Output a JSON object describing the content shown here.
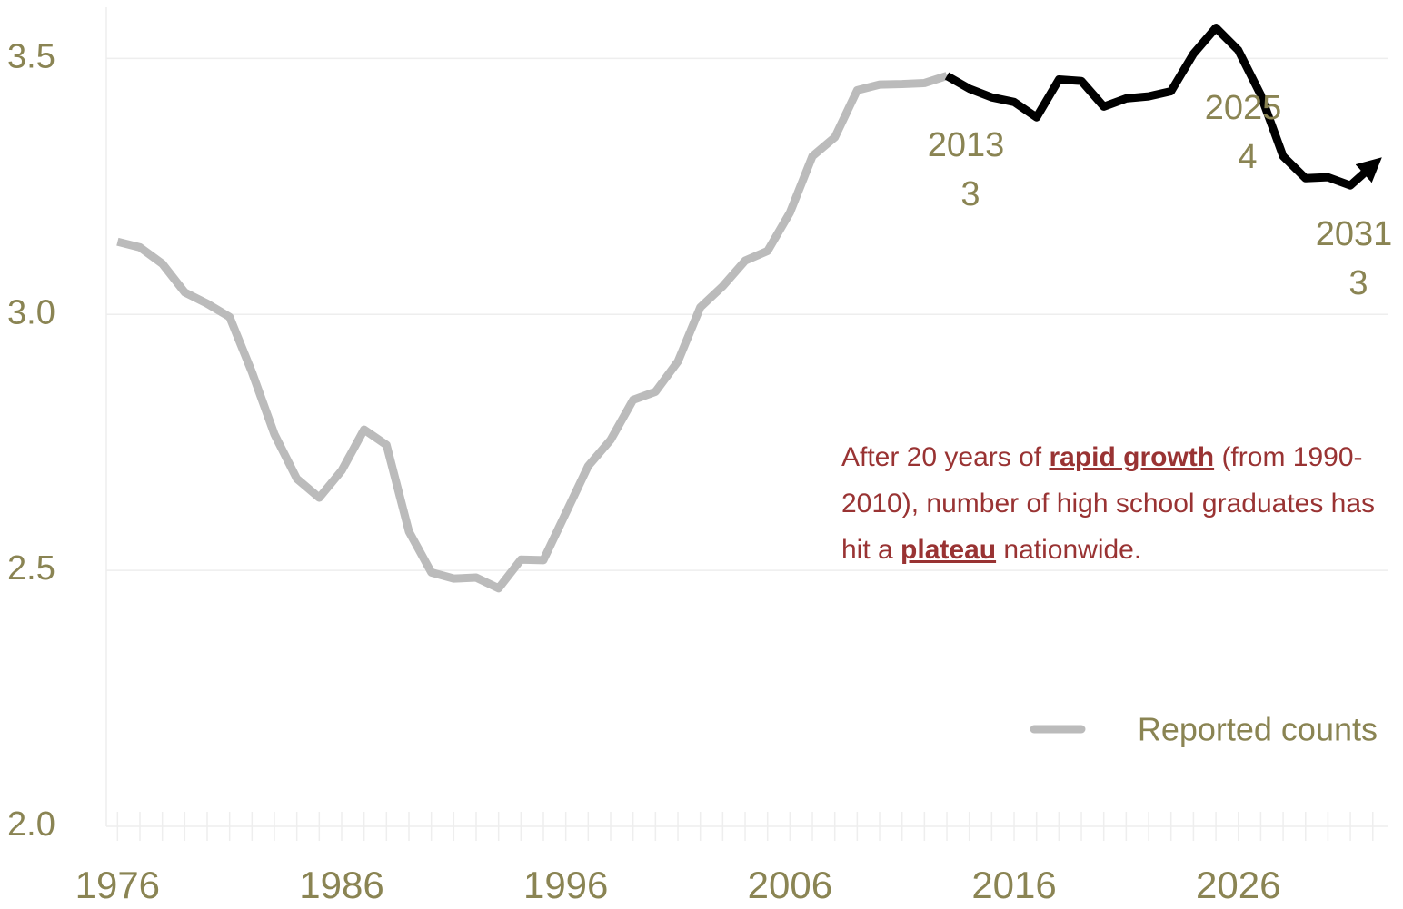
{
  "chart_data": {
    "type": "line",
    "x": [
      1976,
      1977,
      1978,
      1979,
      1980,
      1981,
      1982,
      1983,
      1984,
      1985,
      1986,
      1987,
      1988,
      1989,
      1990,
      1991,
      1992,
      1993,
      1994,
      1995,
      1996,
      1997,
      1998,
      1999,
      2000,
      2001,
      2002,
      2003,
      2004,
      2005,
      2006,
      2007,
      2008,
      2009,
      2010,
      2011,
      2012,
      2013,
      2014,
      2015,
      2016,
      2017,
      2018,
      2019,
      2020,
      2021,
      2022,
      2023,
      2024,
      2025,
      2026,
      2027,
      2028,
      2029,
      2030,
      2031,
      2032
    ],
    "series": [
      {
        "name": "Reported counts",
        "color": "#bbbbbb",
        "values": [
          3.142,
          3.131,
          3.099,
          3.043,
          3.021,
          2.995,
          2.887,
          2.766,
          2.679,
          2.642,
          2.695,
          2.775,
          2.745,
          2.576,
          2.496,
          2.484,
          2.486,
          2.465,
          2.521,
          2.52,
          2.612,
          2.704,
          2.755,
          2.833,
          2.849,
          2.908,
          3.014,
          3.055,
          3.105,
          3.124,
          3.199,
          3.309,
          3.346,
          3.438,
          3.449,
          3.45,
          3.452,
          3.466,
          null,
          null,
          null,
          null,
          null,
          null,
          null,
          null,
          null,
          null,
          null,
          null,
          null,
          null,
          null,
          null,
          null,
          null,
          null
        ]
      },
      {
        "color": "#000000",
        "values": [
          null,
          null,
          null,
          null,
          null,
          null,
          null,
          null,
          null,
          null,
          null,
          null,
          null,
          null,
          null,
          null,
          null,
          null,
          null,
          null,
          null,
          null,
          null,
          null,
          null,
          null,
          null,
          null,
          null,
          null,
          null,
          null,
          null,
          null,
          null,
          null,
          null,
          3.466,
          3.441,
          3.424,
          3.415,
          3.385,
          3.459,
          3.456,
          3.406,
          3.422,
          3.426,
          3.436,
          3.509,
          3.56,
          3.516,
          3.429,
          3.309,
          3.266,
          3.268,
          3.252,
          3.291
        ]
      }
    ],
    "xlim": [
      1975.5,
      2032.7
    ],
    "ylim": [
      2.0,
      3.6
    ],
    "xticks": [
      1976,
      1986,
      1996,
      2006,
      2016,
      2026
    ],
    "yticks": [
      {
        "value": 2.0,
        "label": "2.0"
      },
      2.5,
      {
        "value": 3.0,
        "label": "3.0"
      },
      3.5
    ],
    "grid": true,
    "legend": "bottom-right",
    "annotations": [
      [
        "2013",
        "3"
      ],
      [
        "2025",
        "4"
      ],
      [
        "2031",
        "3"
      ]
    ],
    "note": [
      "After 20 years of ",
      "rapid growth",
      " (from 1990-2010), number of high school graduates has hit a ",
      "plateau",
      " nationwide."
    ]
  }
}
